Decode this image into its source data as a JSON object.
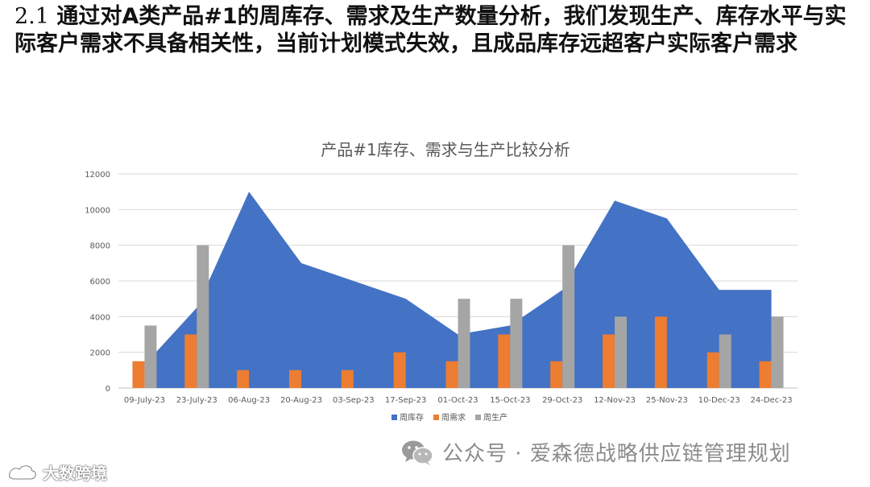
{
  "headline": {
    "number": "2.1",
    "text": "通过对A类产品#1的周库存、需求及生产数量分析，我们发现生产、库存水平与实际客户需求不具备相关性，当前计划模式失效，且成品库存远超客户实际客户需求"
  },
  "chart_data": {
    "type": "bar",
    "title": "产品#1库存、需求与生产比较分析",
    "categories": [
      "09-July-23",
      "23-July-23",
      "06-Aug-23",
      "20-Aug-23",
      "03-Sep-23",
      "17-Sep-23",
      "01-Oct-23",
      "15-Oct-23",
      "29-Oct-23",
      "12-Nov-23",
      "25-Nov-23",
      "10-Dec-23",
      "24-Dec-23"
    ],
    "ylim": [
      0,
      12000
    ],
    "yticks": [
      0,
      2000,
      4000,
      6000,
      8000,
      10000,
      12000
    ],
    "grid": true,
    "legend_position": "bottom",
    "series": [
      {
        "name": "周库存",
        "type": "area",
        "color": "#4472C4",
        "values": [
          1300,
          4500,
          11000,
          7000,
          6000,
          5000,
          3000,
          3500,
          5500,
          10500,
          9500,
          5500,
          5500
        ]
      },
      {
        "name": "周需求",
        "type": "bar",
        "color": "#ED7D31",
        "values": [
          1500,
          3000,
          1000,
          1000,
          1000,
          2000,
          1500,
          3000,
          1500,
          3000,
          4000,
          2000,
          1500
        ]
      },
      {
        "name": "周生产",
        "type": "bar",
        "color": "#A5A5A5",
        "values": [
          3500,
          8000,
          0,
          0,
          0,
          0,
          5000,
          5000,
          8000,
          4000,
          0,
          3000,
          4000
        ]
      }
    ]
  },
  "watermark": {
    "text": "公众号 · 爱森德战略供应链管理规划",
    "icon": "wechat-icon"
  },
  "logo": {
    "text": "大数跨境",
    "icon": "brand-logo-icon"
  }
}
